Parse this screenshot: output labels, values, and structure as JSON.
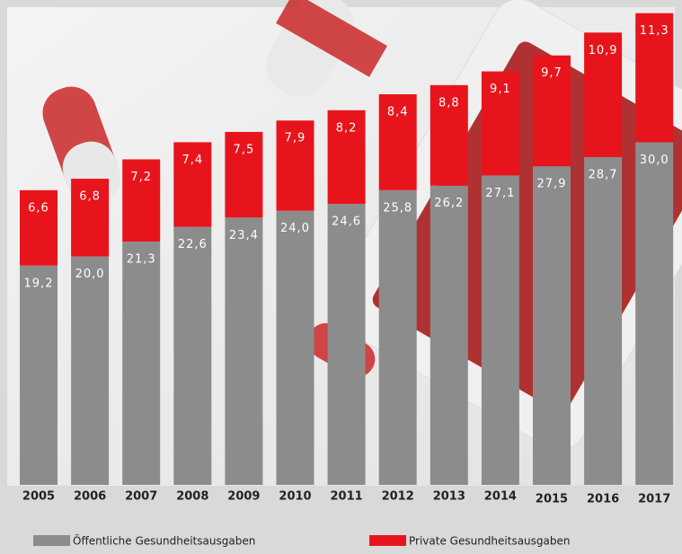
{
  "chart_data": {
    "type": "stacked_bar",
    "categories": [
      "2005",
      "2006",
      "2007",
      "2008",
      "2009",
      "2010",
      "2011",
      "2012",
      "2013",
      "2014",
      "2015",
      "2016",
      "2017"
    ],
    "series": [
      {
        "name": "Öffentliche Gesundheitsausgaben",
        "color": "#8c8c8c",
        "values": [
          19.2,
          20.0,
          21.3,
          22.6,
          23.4,
          24.0,
          24.6,
          25.8,
          26.2,
          27.1,
          27.9,
          28.7,
          30.0
        ],
        "value_labels": [
          "19,2",
          "20,0",
          "21,3",
          "22,6",
          "23,4",
          "24,0",
          "24,6",
          "25,8",
          "26,2",
          "27,1",
          "27,9",
          "28,7",
          "30,0"
        ]
      },
      {
        "name": "Private Gesundheitsausgaben",
        "color": "#e8141c",
        "values": [
          6.6,
          6.8,
          7.2,
          7.4,
          7.5,
          7.9,
          8.2,
          8.4,
          8.8,
          9.1,
          9.7,
          10.9,
          11.3
        ],
        "value_labels": [
          "6,6",
          "6,8",
          "7,2",
          "7,4",
          "7,5",
          "7,9",
          "8,2",
          "8,4",
          "8,8",
          "9,1",
          "9,7",
          "10,9",
          "11,3"
        ]
      }
    ]
  }
}
